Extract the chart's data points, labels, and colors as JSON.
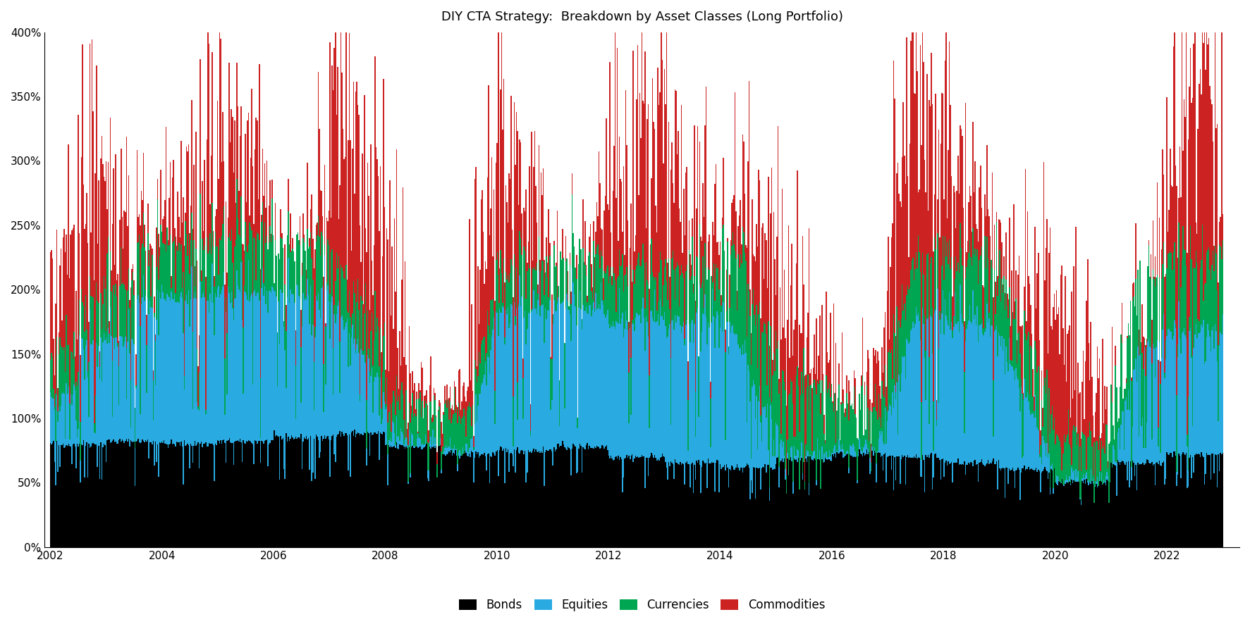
{
  "title": "DIY CTA Strategy:  Breakdown by Asset Classes (Long Portfolio)",
  "title_fontsize": 13,
  "colors": {
    "Bonds": "#000000",
    "Equities": "#29ABE2",
    "Currencies": "#00A651",
    "Commodities": "#CC2222"
  },
  "legend_labels": [
    "Bonds",
    "Equities",
    "Currencies",
    "Commodities"
  ],
  "ylim": [
    0,
    4.0
  ],
  "yticks": [
    0,
    0.5,
    1.0,
    1.5,
    2.0,
    2.5,
    3.0,
    3.5,
    4.0
  ],
  "ytick_labels": [
    "0%",
    "50%",
    "100%",
    "150%",
    "200%",
    "250%",
    "300%",
    "350%",
    "400%"
  ],
  "background_color": "#ffffff",
  "figsize": [
    17.73,
    8.86
  ],
  "dpi": 100
}
